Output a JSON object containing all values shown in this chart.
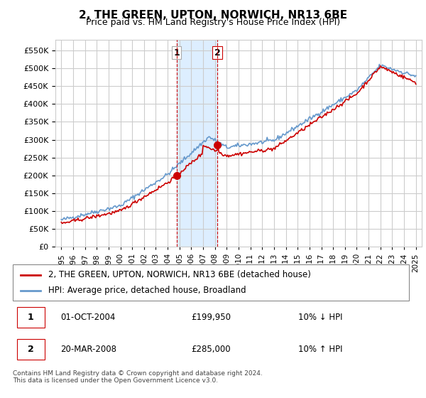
{
  "title": "2, THE GREEN, UPTON, NORWICH, NR13 6BE",
  "subtitle": "Price paid vs. HM Land Registry's House Price Index (HPI)",
  "ylabel_ticks": [
    "£0",
    "£50K",
    "£100K",
    "£150K",
    "£200K",
    "£250K",
    "£300K",
    "£350K",
    "£400K",
    "£450K",
    "£500K",
    "£550K"
  ],
  "ytick_values": [
    0,
    50000,
    100000,
    150000,
    200000,
    250000,
    300000,
    350000,
    400000,
    450000,
    500000,
    550000
  ],
  "ylim": [
    0,
    580000
  ],
  "xlim_start": 1994.5,
  "xlim_end": 2025.5,
  "sale1_x": 2004.75,
  "sale1_y": 199950,
  "sale1_label": "1",
  "sale2_x": 2008.22,
  "sale2_y": 285000,
  "sale2_label": "2",
  "shade_x1": 2004.75,
  "shade_x2": 2008.22,
  "vline1_x": 2004.75,
  "vline2_x": 2008.22,
  "line_color_red": "#cc0000",
  "line_color_blue": "#6699cc",
  "shade_color": "#ddeeff",
  "vline_color": "#cc0000",
  "marker_color_red": "#cc0000",
  "marker_color_blue": "#6699cc",
  "background_color": "#ffffff",
  "grid_color": "#cccccc",
  "legend_line1": "2, THE GREEN, UPTON, NORWICH, NR13 6BE (detached house)",
  "legend_line2": "HPI: Average price, detached house, Broadland",
  "table_row1": [
    "1",
    "01-OCT-2004",
    "£199,950",
    "10% ↓ HPI"
  ],
  "table_row2": [
    "2",
    "20-MAR-2008",
    "£285,000",
    "10% ↑ HPI"
  ],
  "footer": "Contains HM Land Registry data © Crown copyright and database right 2024.\nThis data is licensed under the Open Government Licence v3.0.",
  "xlabel_years": [
    "1995",
    "1996",
    "1997",
    "1998",
    "1999",
    "2000",
    "2001",
    "2002",
    "2003",
    "2004",
    "2005",
    "2006",
    "2007",
    "2008",
    "2009",
    "2010",
    "2011",
    "2012",
    "2013",
    "2014",
    "2015",
    "2016",
    "2017",
    "2018",
    "2019",
    "2020",
    "2021",
    "2022",
    "2023",
    "2024",
    "2025"
  ]
}
